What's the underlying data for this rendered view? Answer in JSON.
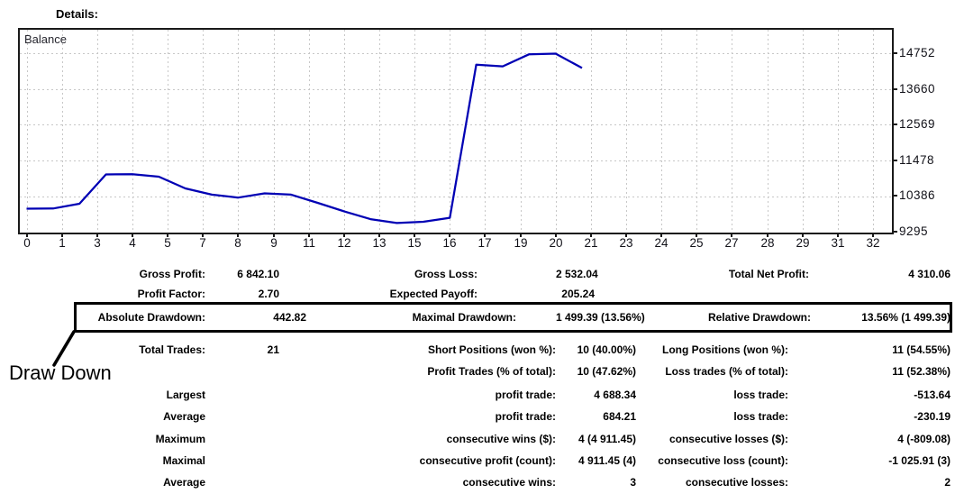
{
  "header": {
    "title": "Details:"
  },
  "chart": {
    "legend": "Balance"
  },
  "chart_data": {
    "type": "line",
    "title": "",
    "legend": "Balance",
    "line_color": "#0000b4",
    "grid": true,
    "y_axis_ticks": [
      14752,
      13660,
      12569,
      11478,
      10386,
      9295
    ],
    "x_axis_ticks": [
      0,
      1,
      3,
      4,
      5,
      7,
      8,
      9,
      11,
      12,
      13,
      15,
      16,
      17,
      19,
      20,
      21,
      23,
      24,
      25,
      27,
      28,
      29,
      31,
      32
    ],
    "x_axis_range": [
      0,
      32
    ],
    "ylim": [
      9295,
      14752
    ],
    "series": [
      {
        "name": "Balance",
        "x": [
          0,
          1,
          2,
          3,
          4,
          5,
          6,
          7,
          8,
          9,
          10,
          11,
          12,
          13,
          14,
          15,
          16,
          17,
          18,
          19,
          20,
          21
        ],
        "values": [
          10000,
          10005,
          10150,
          11050,
          11056,
          10980,
          10620,
          10430,
          10340,
          10470,
          10430,
          10180,
          9920,
          9680,
          9560,
          9600,
          9721.66,
          14410,
          14360,
          14730,
          14750,
          14310.06
        ]
      }
    ]
  },
  "stats": {
    "rows": [
      [
        "Gross Profit:",
        "6 842.10",
        "Gross Loss:",
        "2 532.04",
        "Total Net Profit:",
        "4 310.06"
      ],
      [
        "Profit Factor:",
        "2.70",
        "Expected Payoff:",
        "205.24",
        "",
        ""
      ],
      [
        "Absolute Drawdown:",
        "442.82",
        "Maximal Drawdown:",
        "1 499.39 (13.56%)",
        "Relative Drawdown:",
        "13.56% (1 499.39)"
      ],
      [
        "Total Trades:",
        "21",
        "Short Positions (won %):",
        "10 (40.00%)",
        "Long Positions (won %):",
        "11 (54.55%)"
      ],
      [
        "",
        "",
        "Profit Trades (% of total):",
        "10 (47.62%)",
        "Loss trades (% of total):",
        "11 (52.38%)"
      ],
      [
        "Largest",
        "",
        "profit trade:",
        "4 688.34",
        "loss trade:",
        "-513.64"
      ],
      [
        "Average",
        "",
        "profit trade:",
        "684.21",
        "loss trade:",
        "-230.19"
      ],
      [
        "Maximum",
        "",
        "consecutive wins ($):",
        "4 (4 911.45)",
        "consecutive losses ($):",
        "4 (-809.08)"
      ],
      [
        "Maximal",
        "",
        "consecutive profit (count):",
        "4 911.45 (4)",
        "consecutive loss (count):",
        "-1 025.91 (3)"
      ],
      [
        "Average",
        "",
        "consecutive wins:",
        "3",
        "consecutive losses:",
        "2"
      ]
    ]
  },
  "annotation": {
    "label": "Draw Down"
  }
}
